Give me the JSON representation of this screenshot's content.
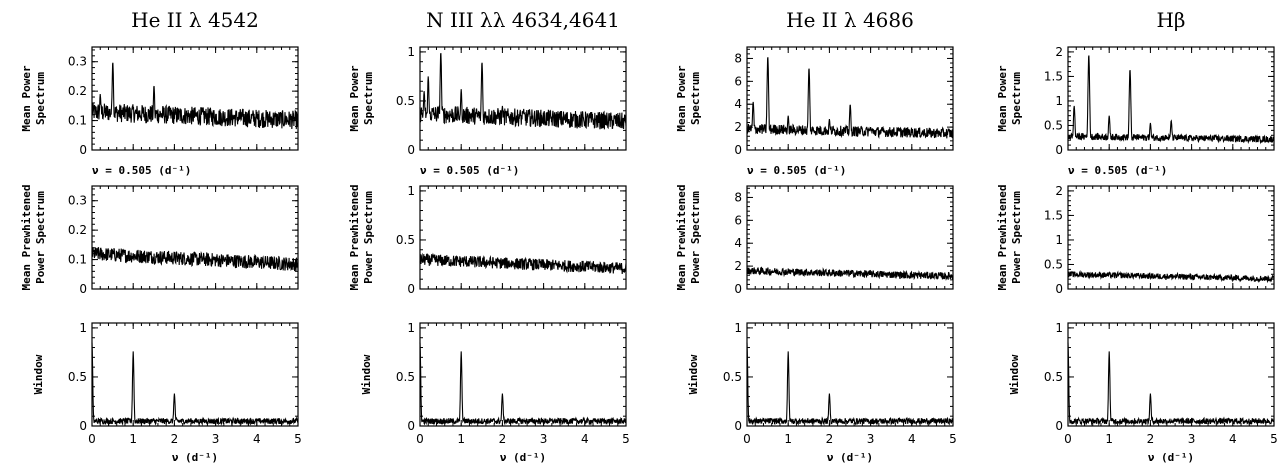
{
  "chart_data": {
    "type": "line",
    "column_titles": [
      "He II λ  4542",
      "N III  λλ 4634,4641",
      "He II λ  4686",
      "Hβ"
    ],
    "row_ylabels": [
      [
        "Mean Power",
        "Spectrum"
      ],
      [
        "Mean Prewhitened",
        "Power Spectrum"
      ],
      [
        "Window"
      ]
    ],
    "xlabel": "ν (d⁻¹)",
    "xlim": [
      0,
      5
    ],
    "xticks": [
      0,
      1,
      2,
      3,
      4,
      5
    ],
    "annotation": "ν = 0.505 (d⁻¹)",
    "columns": [
      {
        "title": "He II λ  4542",
        "ylim": [
          0,
          0.35
        ],
        "yticks": [
          0,
          0.1,
          0.2,
          0.3
        ],
        "yticklabels": [
          "0",
          "0.1",
          "0.2",
          "0.3"
        ],
        "power_peaks": [
          [
            0.08,
            0.08
          ],
          [
            0.2,
            0.19
          ],
          [
            0.505,
            0.3
          ],
          [
            1.505,
            0.22
          ],
          [
            1.0,
            0.14
          ],
          [
            2.5,
            0.1
          ]
        ],
        "power_base": 0.07,
        "prewhitened_base": 0.06
      },
      {
        "title": "N III  λλ 4634,4641",
        "ylim": [
          0,
          1.05
        ],
        "yticks": [
          0,
          0.5,
          1
        ],
        "yticklabels": [
          "0",
          "0.5",
          "1"
        ],
        "power_peaks": [
          [
            0.1,
            0.6
          ],
          [
            0.2,
            0.75
          ],
          [
            0.505,
            1.0
          ],
          [
            1.0,
            0.62
          ],
          [
            1.505,
            0.9
          ],
          [
            2.0,
            0.45
          ],
          [
            2.5,
            0.4
          ]
        ],
        "power_base": 0.2,
        "prewhitened_base": 0.15
      },
      {
        "title": "He II λ  4686",
        "ylim": [
          0,
          9
        ],
        "yticks": [
          0,
          2,
          4,
          6,
          8
        ],
        "yticklabels": [
          "0",
          "2",
          "4",
          "6",
          "8"
        ],
        "power_peaks": [
          [
            0.15,
            4.2
          ],
          [
            0.505,
            8.2
          ],
          [
            1.0,
            3.0
          ],
          [
            1.505,
            7.2
          ],
          [
            2.0,
            2.7
          ],
          [
            2.505,
            4.0
          ],
          [
            3.0,
            2.0
          ]
        ],
        "power_base": 1.0,
        "prewhitened_base": 0.8
      },
      {
        "title": "Hβ",
        "ylim": [
          0,
          2.1
        ],
        "yticks": [
          0,
          0.5,
          1,
          1.5,
          2
        ],
        "yticklabels": [
          "0",
          "0.5",
          "1",
          "1.5",
          "2"
        ],
        "power_peaks": [
          [
            0.15,
            0.9
          ],
          [
            0.505,
            1.95
          ],
          [
            1.0,
            0.7
          ],
          [
            1.505,
            1.65
          ],
          [
            2.0,
            0.55
          ],
          [
            2.505,
            0.6
          ]
        ],
        "power_base": 0.15,
        "prewhitened_base": 0.15
      }
    ],
    "window": {
      "ylim": [
        0,
        1.05
      ],
      "yticks": [
        0,
        0.5,
        1
      ],
      "yticklabels": [
        "0",
        "0.5",
        "1"
      ],
      "peaks": [
        [
          0.0,
          0.85
        ],
        [
          1.0,
          0.76
        ],
        [
          2.0,
          0.33
        ]
      ]
    }
  }
}
